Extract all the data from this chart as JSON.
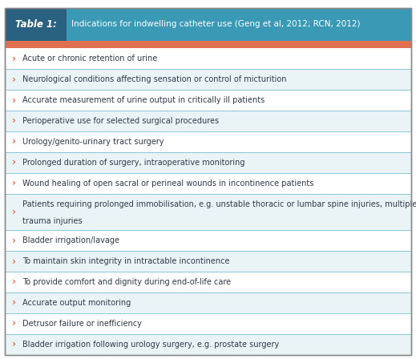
{
  "title_label": "Table 1:",
  "title_text": "Indications for indwelling catheter use (Geng et al, 2012; RCN, 2012)",
  "title_bg": "#3a9ab5",
  "title_bar_color": "#e07050",
  "title_label_bg": "#2a6080",
  "row_bg_odd": "#ffffff",
  "row_bg_even": "#eaf4f7",
  "divider_color": "#7abdd4",
  "text_color": "#2d3a4a",
  "bullet_color": "#e07050",
  "outer_border_color": "#888888",
  "items": [
    "Acute or chronic retention of urine",
    "Neurological conditions affecting sensation or control of micturition",
    "Accurate measurement of urine output in critically ill patients",
    "Perioperative use for selected surgical procedures",
    "Urology/genito-urinary tract surgery",
    "Prolonged duration of surgery, intraoperative monitoring",
    "Wound healing of open sacral or perineal wounds in incontinence patients",
    "Patients requiring prolonged immobilisation, e.g. unstable thoracic or lumbar spine injuries, multiple\ntrauma injuries",
    "Bladder irrigation/lavage",
    "To maintain skin integrity in intractable incontinence",
    "To provide comfort and dignity during end-of-life care",
    "Accurate output monitoring",
    "Detrusor failure or inefficiency",
    "Bladder irrigation following urology surgery, e.g. prostate surgery"
  ],
  "fig_width": 5.19,
  "fig_height": 4.48,
  "dpi": 100
}
